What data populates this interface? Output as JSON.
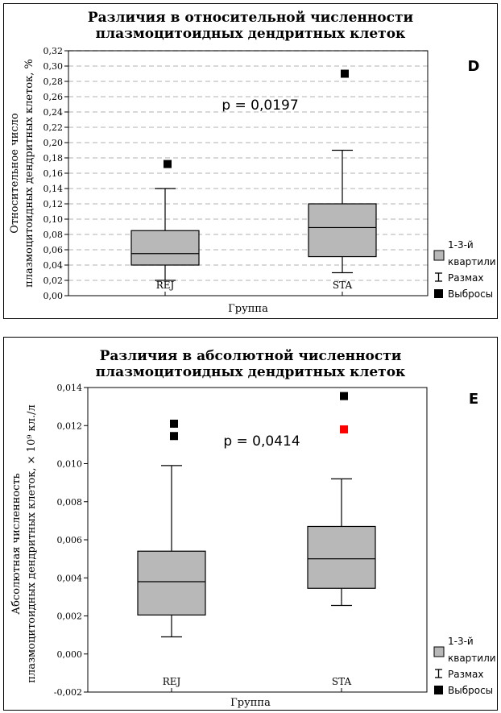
{
  "colors": {
    "box_fill": "#b8b8b8",
    "outlier": "#000000",
    "outlier_red": "#ff0000",
    "grid": "#cccccc"
  },
  "legend": {
    "quartiles_line1": "1-3-й",
    "quartiles_line2": "квартили",
    "range": "Размах",
    "outliers": "Выбросы"
  },
  "chart_data": [
    {
      "panel_letter": "D",
      "type": "box",
      "title_line1": "Различия в относительной численности",
      "title_line2": "плазмоцитоидных дендритных клеток",
      "ylabel_line1": "Относительное число",
      "ylabel_line2": "плазмоцитоидных дендритных клеток, %",
      "xlabel": "Группа",
      "annotation": "p = 0,0197",
      "ylim": [
        0,
        0.32
      ],
      "yticks": [
        "0,00",
        "0,02",
        "0,04",
        "0,06",
        "0,08",
        "0,10",
        "0,12",
        "0,14",
        "0,16",
        "0,18",
        "0,20",
        "0,22",
        "0,24",
        "0,26",
        "0,28",
        "0,30",
        "0,32"
      ],
      "grid": true,
      "categories": [
        "REJ",
        "STA"
      ],
      "boxes": [
        {
          "q1": 0.04,
          "median": 0.055,
          "q3": 0.085,
          "min": 0.02,
          "max": 0.14,
          "outliers": [
            {
              "value": 0.172,
              "color": "black"
            }
          ]
        },
        {
          "q1": 0.051,
          "median": 0.089,
          "q3": 0.12,
          "min": 0.03,
          "max": 0.19,
          "outliers": [
            {
              "value": 0.29,
              "color": "black"
            }
          ]
        }
      ]
    },
    {
      "panel_letter": "E",
      "type": "box",
      "title_line1": "Различия в абсолютной численности",
      "title_line2": "плазмоцитоидных дендритных клеток",
      "ylabel_line1": "Абсолютная численность",
      "ylabel_line2": "плазмоцитоидных дендритных клеток, × 10⁹ кл./л",
      "xlabel": "Группа",
      "annotation": "p = 0,0414",
      "ylim": [
        -0.002,
        0.014
      ],
      "yticks": [
        "-0,002",
        "0,000",
        "0,002",
        "0,004",
        "0,006",
        "0,008",
        "0,010",
        "0,012",
        "0,014"
      ],
      "grid": false,
      "categories": [
        "REJ",
        "STA"
      ],
      "boxes": [
        {
          "q1": 0.00205,
          "median": 0.0038,
          "q3": 0.0054,
          "min": 0.0009,
          "max": 0.0099,
          "outliers": [
            {
              "value": 0.0121,
              "color": "black"
            },
            {
              "value": 0.01145,
              "color": "black"
            }
          ]
        },
        {
          "q1": 0.00345,
          "median": 0.005,
          "q3": 0.0067,
          "min": 0.00255,
          "max": 0.0092,
          "outliers": [
            {
              "value": 0.01355,
              "color": "black"
            },
            {
              "value": 0.0118,
              "color": "red"
            }
          ]
        }
      ]
    }
  ]
}
